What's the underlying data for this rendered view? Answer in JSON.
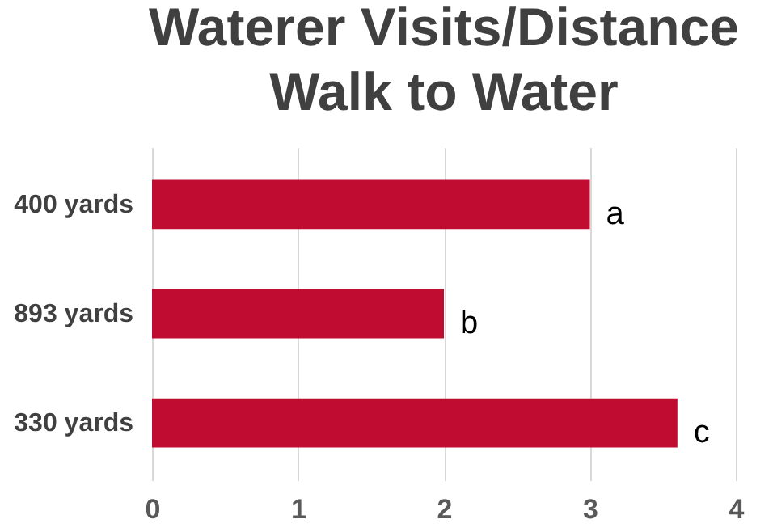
{
  "chart_data": {
    "type": "bar",
    "orientation": "horizontal",
    "title": "Waterer Visits/Distance\nWalk to Water",
    "categories": [
      "400 yards",
      "893 yards",
      "330 yards"
    ],
    "values": [
      3.0,
      2.0,
      3.6
    ],
    "color": "#c00c30",
    "xlim": [
      0,
      4
    ],
    "xticks": [
      0,
      1,
      2,
      3,
      4
    ],
    "grid": "x",
    "annotations": [
      {
        "text": "a",
        "x": 3.0,
        "y": "400 yards"
      },
      {
        "text": "b",
        "x": 2.0,
        "y": "893 yards"
      },
      {
        "text": "c",
        "x": 3.6,
        "y": "330 yards"
      }
    ]
  }
}
